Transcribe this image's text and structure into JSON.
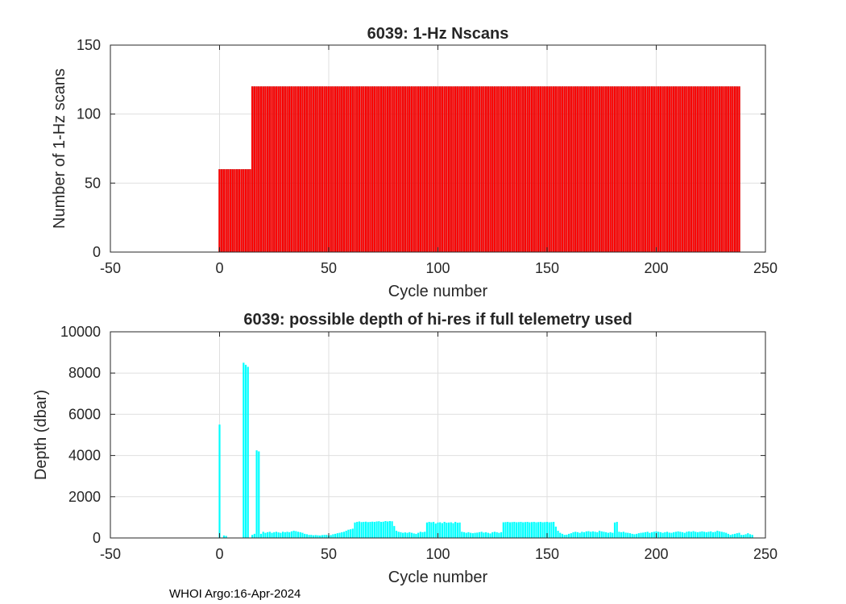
{
  "footer": "WHOI Argo:16-Apr-2024",
  "chart_data": [
    {
      "type": "bar",
      "title": "6039: 1-Hz Nscans",
      "xlabel": "Cycle number",
      "ylabel": "Number of 1-Hz scans",
      "xlim": [
        -50,
        250
      ],
      "ylim": [
        0,
        150
      ],
      "xticks": [
        -50,
        0,
        50,
        100,
        150,
        200,
        250
      ],
      "yticks": [
        0,
        50,
        100,
        150
      ],
      "xtick_labels": [
        "-50",
        "0",
        "50",
        "100",
        "150",
        "200",
        "250"
      ],
      "ytick_labels": [
        "0",
        "50",
        "100",
        "150"
      ],
      "grid": true,
      "color": "#ff0000",
      "series": [
        {
          "name": "Nscans",
          "segments": [
            {
              "from": 0,
              "to": 14,
              "value": 60
            },
            {
              "from": 15,
              "to": 238,
              "value": 120
            }
          ]
        }
      ]
    },
    {
      "type": "bar",
      "title": "6039: possible depth of hi-res if full telemetry used",
      "xlabel": "Cycle number",
      "ylabel": "Depth (dbar)",
      "xlim": [
        -50,
        250
      ],
      "ylim": [
        0,
        10000
      ],
      "xticks": [
        -50,
        0,
        50,
        100,
        150,
        200,
        250
      ],
      "yticks": [
        0,
        2000,
        4000,
        6000,
        8000,
        10000
      ],
      "xtick_labels": [
        "-50",
        "0",
        "50",
        "100",
        "150",
        "200",
        "250"
      ],
      "ytick_labels": [
        "0",
        "2000",
        "4000",
        "6000",
        "8000",
        "10000"
      ],
      "grid": true,
      "color": "#00ffff",
      "x_start": 0,
      "values": [
        5500,
        0,
        120,
        100,
        0,
        0,
        0,
        0,
        0,
        0,
        0,
        8500,
        8400,
        8300,
        0,
        150,
        200,
        4250,
        4200,
        200,
        300,
        250,
        280,
        300,
        250,
        280,
        300,
        270,
        250,
        300,
        280,
        300,
        280,
        320,
        350,
        330,
        300,
        280,
        250,
        200,
        180,
        150,
        150,
        130,
        140,
        130,
        120,
        140,
        150,
        150,
        120,
        140,
        180,
        200,
        230,
        250,
        280,
        300,
        350,
        400,
        420,
        450,
        750,
        780,
        800,
        770,
        780,
        790,
        770,
        780,
        790,
        780,
        800,
        810,
        780,
        790,
        820,
        800,
        820,
        810,
        580,
        350,
        300,
        280,
        250,
        270,
        250,
        280,
        250,
        220,
        200,
        250,
        300,
        280,
        300,
        750,
        780,
        760,
        780,
        700,
        750,
        760,
        720,
        780,
        740,
        750,
        760,
        720,
        780,
        740,
        750,
        300,
        280,
        250,
        280,
        250,
        230,
        250,
        260,
        280,
        300,
        260,
        280,
        250,
        220,
        280,
        300,
        280,
        250,
        280,
        760,
        770,
        780,
        760,
        770,
        780,
        760,
        770,
        780,
        760,
        770,
        780,
        760,
        770,
        780,
        760,
        770,
        780,
        760,
        770,
        780,
        760,
        770,
        780,
        550,
        350,
        250,
        200,
        150,
        160,
        200,
        230,
        280,
        300,
        280,
        250,
        300,
        280,
        320,
        330,
        300,
        320,
        300,
        280,
        350,
        320,
        300,
        280,
        250,
        280,
        250,
        750,
        780,
        300,
        280,
        300,
        260,
        250,
        230,
        200,
        180,
        200,
        230,
        250,
        260,
        280,
        300,
        250,
        280,
        300,
        320,
        300,
        280,
        250,
        280,
        300,
        260,
        250,
        280,
        300,
        320,
        300,
        280,
        250,
        300,
        320,
        300,
        330,
        300,
        280,
        300,
        320,
        300,
        280,
        300,
        320,
        280,
        300,
        350,
        320,
        300,
        280,
        250,
        200,
        150,
        180,
        200,
        230,
        250,
        150,
        150,
        180,
        230,
        180,
        150
      ]
    }
  ]
}
